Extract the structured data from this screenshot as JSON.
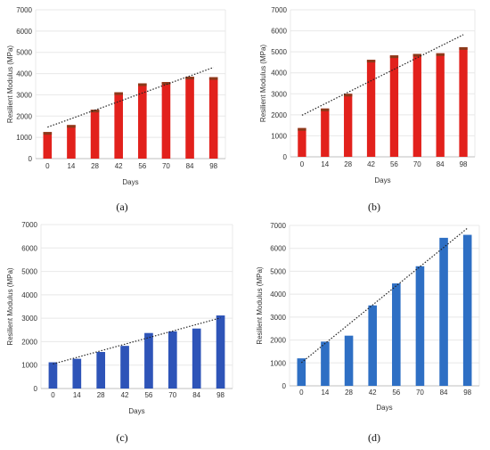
{
  "chart_data": [
    {
      "panel_label": "(a)",
      "type": "bar",
      "categories": [
        "0",
        "14",
        "28",
        "42",
        "56",
        "70",
        "84",
        "98"
      ],
      "values": [
        1250,
        1580,
        2300,
        3120,
        3540,
        3600,
        3850,
        3830
      ],
      "xlabel": "Days",
      "ylabel": "Resilient Modulus (MPa)",
      "ylim": [
        0,
        7000
      ],
      "yticks": [
        0,
        1000,
        2000,
        3000,
        4000,
        5000,
        6000,
        7000
      ],
      "trendline": "linear",
      "grid": true,
      "bar_color": "#e2211c",
      "bar_top_color": "#8b3a1a"
    },
    {
      "panel_label": "(b)",
      "type": "bar",
      "categories": [
        "0",
        "14",
        "28",
        "42",
        "56",
        "70",
        "84",
        "98"
      ],
      "values": [
        1370,
        2300,
        3000,
        4620,
        4830,
        4900,
        4930,
        5220
      ],
      "xlabel": "Days",
      "ylabel": "Resilient Modulus (MPa)",
      "ylim": [
        0,
        7000
      ],
      "yticks": [
        0,
        1000,
        2000,
        3000,
        4000,
        5000,
        6000,
        7000
      ],
      "trendline": "linear",
      "grid": true,
      "bar_color": "#e2211c",
      "bar_top_color": "#8b3a1a"
    },
    {
      "panel_label": "(c)",
      "type": "bar",
      "categories": [
        "0",
        "14",
        "28",
        "42",
        "56",
        "70",
        "84",
        "98"
      ],
      "values": [
        1120,
        1270,
        1560,
        1820,
        2370,
        2440,
        2560,
        3120
      ],
      "xlabel": "Days",
      "ylabel": "Resilient Modulus (MPa)",
      "ylim": [
        0,
        7000
      ],
      "yticks": [
        0,
        1000,
        2000,
        3000,
        4000,
        5000,
        6000,
        7000
      ],
      "trendline": "linear",
      "grid": true,
      "bar_color": "#2e54b8",
      "bar_top_color": "#2e54b8"
    },
    {
      "panel_label": "(d)",
      "type": "bar",
      "categories": [
        "0",
        "14",
        "28",
        "42",
        "56",
        "70",
        "84",
        "98"
      ],
      "values": [
        1200,
        1930,
        2190,
        3510,
        4470,
        5220,
        6460,
        6590
      ],
      "xlabel": "Days",
      "ylabel": "Resilient Modulus (MPa)",
      "ylim": [
        0,
        7000
      ],
      "yticks": [
        0,
        1000,
        2000,
        3000,
        4000,
        5000,
        6000,
        7000
      ],
      "trendline": "linear",
      "grid": true,
      "bar_color": "#2e6fc4",
      "bar_top_color": "#2e6fc4"
    }
  ]
}
